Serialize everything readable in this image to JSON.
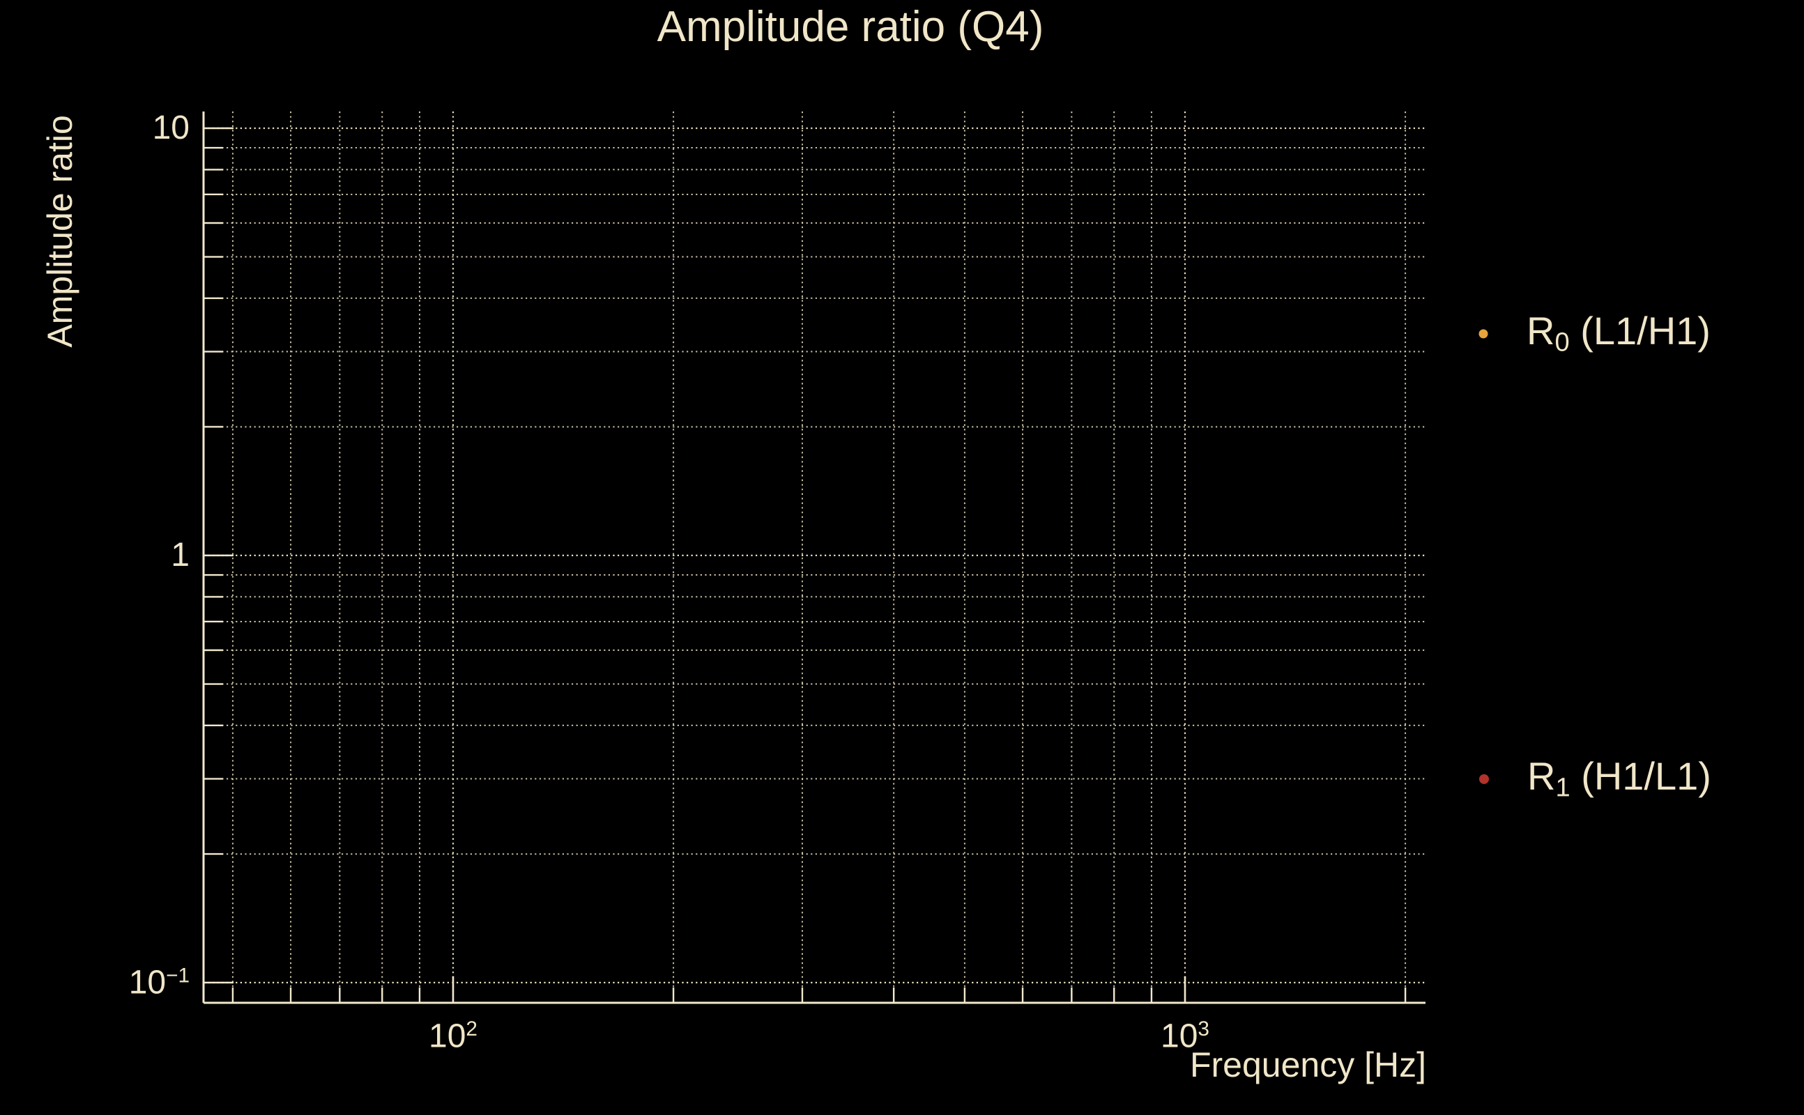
{
  "title": "Amplitude ratio (Q4)",
  "colors": {
    "background": "#000000",
    "text": "#f0e6c8",
    "grid": "#efe5c3",
    "spine": "#f2e8cd",
    "series_r0": "#e8a33c",
    "series_r1": "#b1332a"
  },
  "axes": {
    "ylabel": "Amplitude ratio",
    "xlabel": "Frequency [Hz]",
    "yticks": {
      "t10": {
        "base": "10",
        "sup": ""
      },
      "t1": {
        "base": "1",
        "sup": ""
      },
      "t01": {
        "base": "10",
        "sup": "−1"
      }
    },
    "xticks": {
      "t100": {
        "base": "10",
        "sup": "2"
      },
      "t1000": {
        "base": "10",
        "sup": "3"
      }
    }
  },
  "legend": {
    "entries": [
      {
        "prefix": "R",
        "sub": "0",
        "rest": " (L1/H1)",
        "marker": "dot",
        "color": "#e8a33c"
      },
      {
        "prefix": "R",
        "sub": "1",
        "rest": " (H1/L1)",
        "marker": "dot",
        "color": "#b1332a"
      }
    ]
  },
  "chart_data": {
    "type": "scatter",
    "title": "Amplitude ratio (Q4)",
    "xlabel": "Frequency [Hz]",
    "ylabel": "Amplitude ratio",
    "x_scale": "log",
    "y_scale": "log",
    "xlim": [
      45.6,
      2130
    ],
    "ylim": [
      0.09,
      10.9
    ],
    "x_major_ticks": [
      100,
      1000
    ],
    "x_minor_ticks": [
      50,
      60,
      70,
      80,
      90,
      200,
      300,
      400,
      500,
      600,
      700,
      800,
      900,
      2000
    ],
    "y_major_ticks": [
      10,
      1,
      0.1
    ],
    "y_minor_ticks": [
      9,
      8,
      7,
      6,
      5,
      4,
      3,
      2,
      0.9,
      0.8,
      0.7,
      0.6,
      0.5,
      0.4,
      0.3,
      0.2
    ],
    "grid": "dotted, both axes, major and minor",
    "legend_position": "outside right",
    "series": [
      {
        "name": "R0 (L1/H1)",
        "color": "#e8a33c",
        "marker": "dot",
        "x": [],
        "y": []
      },
      {
        "name": "R1 (H1/L1)",
        "color": "#b1332a",
        "marker": "dot",
        "x": [],
        "y": []
      }
    ],
    "points_visible": false
  }
}
